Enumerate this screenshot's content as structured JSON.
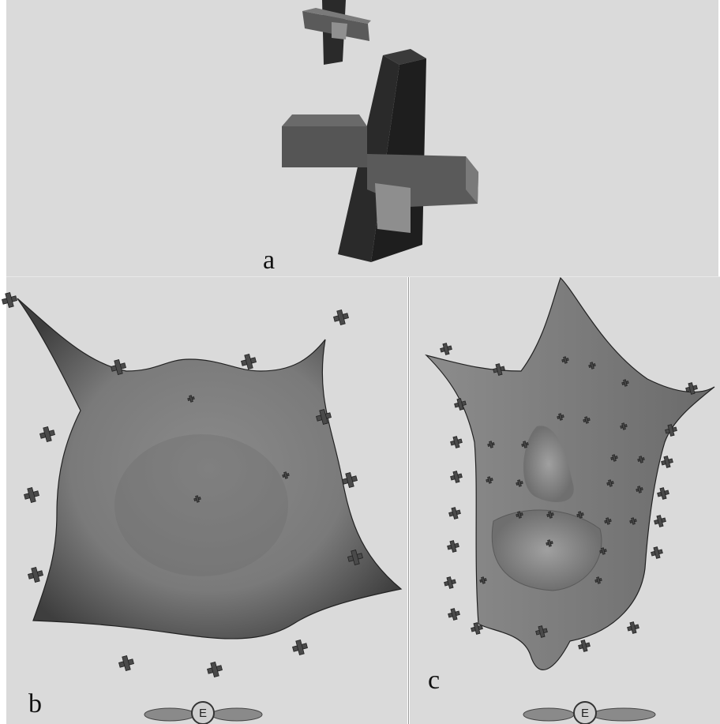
{
  "panels": [
    {
      "label": "a"
    },
    {
      "label": "b",
      "toolbar": "E"
    },
    {
      "label": "c",
      "toolbar": "E"
    }
  ]
}
